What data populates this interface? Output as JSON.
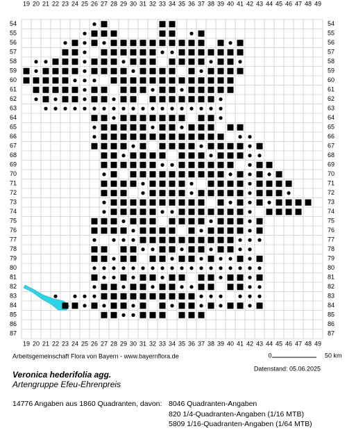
{
  "map": {
    "columns": [
      "19",
      "20",
      "21",
      "22",
      "23",
      "24",
      "25",
      "26",
      "27",
      "28",
      "29",
      "30",
      "31",
      "32",
      "33",
      "34",
      "35",
      "36",
      "37",
      "38",
      "39",
      "40",
      "41",
      "42",
      "43",
      "44",
      "45",
      "46",
      "47",
      "48",
      "49"
    ],
    "rows": [
      "54",
      "55",
      "56",
      "57",
      "58",
      "59",
      "60",
      "61",
      "62",
      "63",
      "64",
      "65",
      "66",
      "67",
      "68",
      "69",
      "70",
      "71",
      "72",
      "73",
      "74",
      "75",
      "76",
      "77",
      "78",
      "79",
      "80",
      "81",
      "82",
      "83",
      "84",
      "85",
      "86",
      "87"
    ]
  },
  "footer": {
    "credit": "Arbeitsgemeinschaft Flora von Bayern - www.bayernflora.de",
    "scale_start": "0",
    "scale_end": "50 km",
    "date": "Datenstand: 05.06.2025",
    "species": "Veronica hederifolia agg.",
    "group": "Artengruppe Efeu-Ehrenpreis",
    "summary": "14776 Angaben aus 1860 Quadranten, davon:",
    "counts": [
      "8046 Quadranten-Angaben",
      "820 1/4-Quadranten-Angaben (1/16 MTB)",
      "5809 1/16-Quadranten-Angaben (1/64 MTB)"
    ]
  }
}
